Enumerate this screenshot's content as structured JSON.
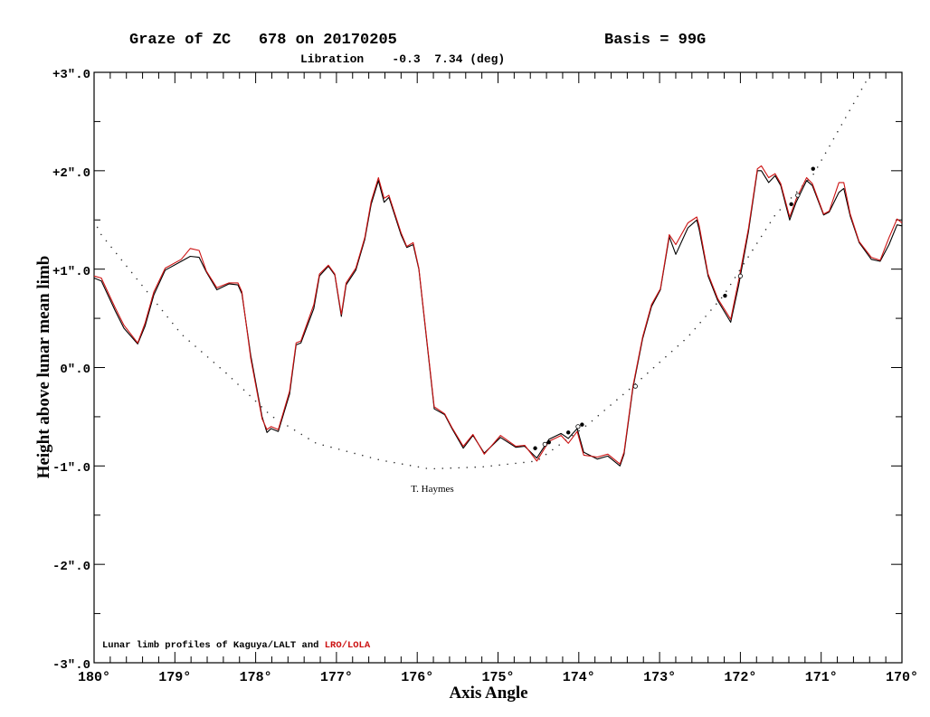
{
  "header": {
    "title": "Graze of ZC   678 on 20170205",
    "basis": "Basis = 99G",
    "libration": "Libration    -0.3  7.34 (deg)"
  },
  "annotation": "T. Haymes",
  "legend": {
    "prefix": "Lunar limb profiles of Kaguya/LALT and ",
    "red_part": "LRO/LOLA"
  },
  "colors": {
    "kaguya": "#000000",
    "lola": "#cc1111",
    "axes": "#000000"
  },
  "chart_data": {
    "type": "line",
    "xlabel": "Axis Angle",
    "ylabel": "Height above lunar mean limb",
    "xlim": [
      180,
      170
    ],
    "ylim": [
      -3,
      3
    ],
    "x_ticks": [
      "180°",
      "179°",
      "178°",
      "177°",
      "176°",
      "175°",
      "174°",
      "173°",
      "172°",
      "171°",
      "170°"
    ],
    "y_ticks": [
      "+3\".0",
      "+2\".0",
      "+1\".0",
      "0\".0",
      "-1\".0",
      "-2\".0",
      "-3\".0"
    ],
    "grid": false,
    "series": [
      {
        "name": "LRO/LOLA",
        "color": "#cc1111",
        "x": [
          180.0,
          179.91,
          179.74,
          179.63,
          179.46,
          179.37,
          179.26,
          179.12,
          178.92,
          178.81,
          178.7,
          178.61,
          178.48,
          178.33,
          178.22,
          178.17,
          178.06,
          177.92,
          177.86,
          177.81,
          177.72,
          177.58,
          177.5,
          177.44,
          177.28,
          177.21,
          177.1,
          177.02,
          176.94,
          176.88,
          176.76,
          176.65,
          176.57,
          176.48,
          176.41,
          176.35,
          176.2,
          176.13,
          176.05,
          175.98,
          175.79,
          175.66,
          175.57,
          175.43,
          175.31,
          175.17,
          174.97,
          174.78,
          174.67,
          174.52,
          174.37,
          174.22,
          174.13,
          174.02,
          173.94,
          173.77,
          173.64,
          173.49,
          173.44,
          173.33,
          173.21,
          173.1,
          172.99,
          172.88,
          172.8,
          172.65,
          172.54,
          172.51,
          172.4,
          172.28,
          172.12,
          172.02,
          171.9,
          171.79,
          171.74,
          171.65,
          171.57,
          171.5,
          171.39,
          171.31,
          171.18,
          171.11,
          170.97,
          170.9,
          170.78,
          170.72,
          170.64,
          170.53,
          170.38,
          170.27,
          170.16,
          170.06,
          170.0
        ],
        "y": [
          0.93,
          0.91,
          0.61,
          0.43,
          0.25,
          0.45,
          0.77,
          1.01,
          1.1,
          1.21,
          1.19,
          0.98,
          0.81,
          0.86,
          0.86,
          0.77,
          0.09,
          -0.52,
          -0.63,
          -0.6,
          -0.63,
          -0.24,
          0.25,
          0.27,
          0.64,
          0.95,
          1.04,
          0.95,
          0.54,
          0.86,
          1.01,
          1.32,
          1.69,
          1.93,
          1.72,
          1.75,
          1.37,
          1.23,
          1.27,
          1.01,
          -0.4,
          -0.47,
          -0.61,
          -0.8,
          -0.68,
          -0.88,
          -0.69,
          -0.8,
          -0.79,
          -0.95,
          -0.75,
          -0.69,
          -0.77,
          -0.65,
          -0.89,
          -0.91,
          -0.88,
          -0.98,
          -0.86,
          -0.19,
          0.31,
          0.64,
          0.8,
          1.35,
          1.25,
          1.47,
          1.53,
          1.44,
          0.95,
          0.7,
          0.49,
          0.89,
          1.41,
          2.02,
          2.05,
          1.93,
          1.97,
          1.87,
          1.53,
          1.71,
          1.93,
          1.87,
          1.56,
          1.59,
          1.88,
          1.88,
          1.56,
          1.28,
          1.12,
          1.09,
          1.32,
          1.51,
          1.47
        ]
      },
      {
        "name": "Kaguya/LALT",
        "color": "#000000",
        "x": [
          180.0,
          179.91,
          179.74,
          179.63,
          179.46,
          179.37,
          179.26,
          179.12,
          178.92,
          178.81,
          178.7,
          178.61,
          178.48,
          178.33,
          178.22,
          178.17,
          178.06,
          177.92,
          177.86,
          177.81,
          177.72,
          177.58,
          177.5,
          177.44,
          177.28,
          177.21,
          177.1,
          177.02,
          176.94,
          176.88,
          176.76,
          176.65,
          176.57,
          176.48,
          176.41,
          176.35,
          176.2,
          176.13,
          176.05,
          175.98,
          175.79,
          175.66,
          175.57,
          175.43,
          175.31,
          175.17,
          174.97,
          174.78,
          174.67,
          174.52,
          174.37,
          174.22,
          174.13,
          174.02,
          173.94,
          173.77,
          173.64,
          173.49,
          173.44,
          173.33,
          173.21,
          173.1,
          172.99,
          172.88,
          172.8,
          172.65,
          172.54,
          172.51,
          172.4,
          172.28,
          172.12,
          172.02,
          171.9,
          171.79,
          171.74,
          171.65,
          171.57,
          171.5,
          171.39,
          171.31,
          171.18,
          171.11,
          170.97,
          170.9,
          170.78,
          170.72,
          170.64,
          170.53,
          170.38,
          170.27,
          170.16,
          170.06,
          170.0
        ],
        "y": [
          0.91,
          0.88,
          0.58,
          0.4,
          0.24,
          0.42,
          0.74,
          0.99,
          1.08,
          1.13,
          1.12,
          0.97,
          0.79,
          0.85,
          0.84,
          0.75,
          0.12,
          -0.5,
          -0.66,
          -0.62,
          -0.65,
          -0.27,
          0.23,
          0.25,
          0.6,
          0.93,
          1.03,
          0.94,
          0.52,
          0.84,
          0.99,
          1.3,
          1.66,
          1.9,
          1.68,
          1.73,
          1.35,
          1.22,
          1.25,
          1.0,
          -0.42,
          -0.48,
          -0.62,
          -0.82,
          -0.69,
          -0.87,
          -0.71,
          -0.81,
          -0.8,
          -0.92,
          -0.73,
          -0.67,
          -0.72,
          -0.62,
          -0.86,
          -0.93,
          -0.9,
          -1.0,
          -0.88,
          -0.21,
          0.29,
          0.62,
          0.79,
          1.33,
          1.15,
          1.42,
          1.5,
          1.4,
          0.93,
          0.68,
          0.46,
          0.84,
          1.38,
          2.0,
          2.0,
          1.88,
          1.95,
          1.85,
          1.5,
          1.68,
          1.9,
          1.85,
          1.55,
          1.58,
          1.78,
          1.82,
          1.54,
          1.27,
          1.1,
          1.08,
          1.25,
          1.45,
          1.44
        ]
      },
      {
        "name": "",
        "style": "dotted",
        "color": "#000000",
        "x": [
          180.0,
          179.93,
          179.48,
          178.92,
          178.36,
          177.81,
          177.25,
          176.46,
          175.85,
          175.2,
          174.52,
          173.89,
          173.33,
          172.65,
          172.21,
          171.57,
          171.09,
          170.38
        ],
        "y": [
          1.5,
          1.37,
          0.91,
          0.34,
          -0.06,
          -0.49,
          -0.77,
          -0.94,
          -1.03,
          -1.01,
          -0.95,
          -0.58,
          -0.19,
          0.31,
          0.73,
          1.55,
          1.97,
          3.0
        ]
      }
    ],
    "observations": {
      "filled": {
        "x": [
          174.54,
          174.37,
          174.13,
          173.96,
          172.19,
          171.37,
          171.1
        ],
        "y": [
          -0.82,
          -0.76,
          -0.66,
          -0.58,
          0.73,
          1.66,
          2.02
        ]
      },
      "open": {
        "x": [
          174.42,
          174.01,
          173.3,
          172.0,
          171.29
        ],
        "y": [
          -0.78,
          -0.6,
          -0.19,
          0.93,
          1.75
        ]
      }
    }
  }
}
